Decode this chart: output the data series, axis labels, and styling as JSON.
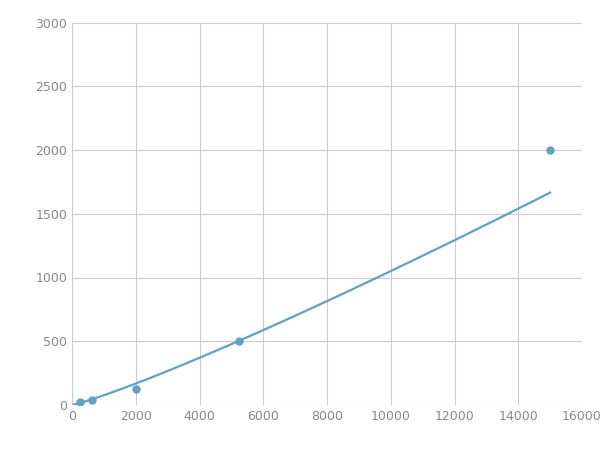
{
  "x_points": [
    250,
    625,
    2000,
    5250,
    15000
  ],
  "y_points": [
    20,
    40,
    125,
    500,
    2000
  ],
  "line_color": "#5ba3c9",
  "marker_color": "#5ba3c9",
  "marker_size": 5,
  "line_width": 1.6,
  "xlim": [
    0,
    16000
  ],
  "ylim": [
    0,
    3000
  ],
  "xticks": [
    0,
    2000,
    4000,
    6000,
    8000,
    10000,
    12000,
    14000,
    16000
  ],
  "yticks": [
    0,
    500,
    1000,
    1500,
    2000,
    2500,
    3000
  ],
  "grid_color": "#cccccc",
  "background_color": "#ffffff",
  "figsize": [
    6.0,
    4.5
  ],
  "dpi": 100,
  "tick_labelsize": 9,
  "tick_color": "#888888"
}
